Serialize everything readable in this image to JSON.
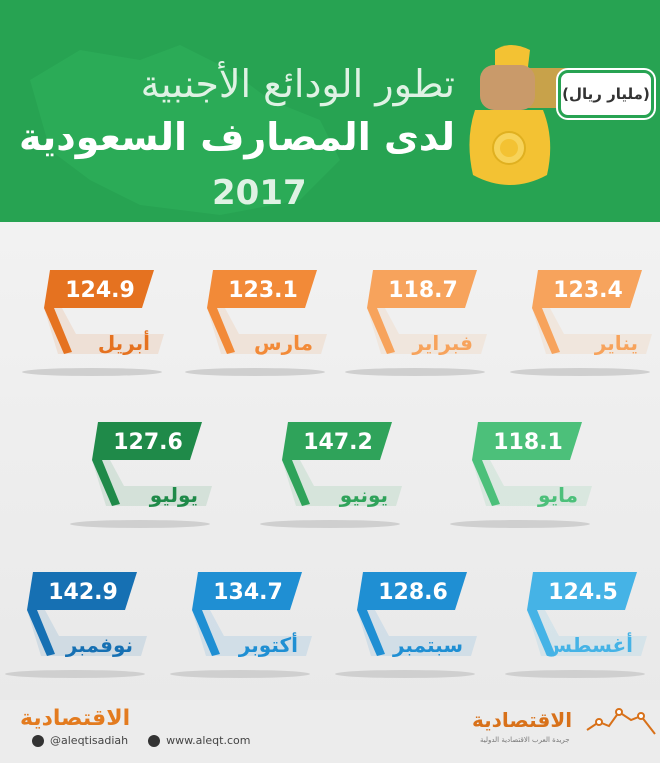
{
  "header": {
    "title_line1": "تطور الودائع الأجنبية",
    "title_line2": "لدى المصارف السعودية",
    "year": "2017",
    "unit": "(مليار ريال)"
  },
  "colors": {
    "header_bg": "#27a352",
    "orange_light": "#f7a35c",
    "orange_mid": "#f28a38",
    "orange_dark": "#e57220",
    "green_light": "#4cc07a",
    "green_mid": "#2fa35a",
    "green_dark": "#1f8a49",
    "blue_light": "#45b3e6",
    "blue_mid": "#1f8fd3",
    "blue_dark": "#1670b3"
  },
  "chart_data": {
    "type": "table",
    "title": "تطور الودائع الأجنبية لدى المصارف السعودية 2017",
    "unit": "مليار ريال",
    "categories": [
      "يناير",
      "فبراير",
      "مارس",
      "أبريل",
      "مايو",
      "يونيو",
      "يوليو",
      "أغسطس",
      "سبتمبر",
      "أكتوبر",
      "نوفمبر"
    ],
    "values": [
      123.4,
      118.7,
      123.1,
      124.9,
      118.1,
      147.2,
      127.6,
      124.5,
      128.6,
      134.7,
      142.9
    ],
    "value_labels": [
      "123.4",
      "118.7",
      "123.1",
      "124.9",
      "118.1",
      "147.2",
      "127.6",
      "124.5",
      "128.6",
      "134.7",
      "142.9"
    ]
  },
  "footer": {
    "brand": "الاقتصادية",
    "twitter": "@aleqtisadiah",
    "website": "www.aleqt.com",
    "brand_right": "الاقتصادية",
    "brand_right_sub": "جريدة العرب الاقتصادية الدولية"
  }
}
